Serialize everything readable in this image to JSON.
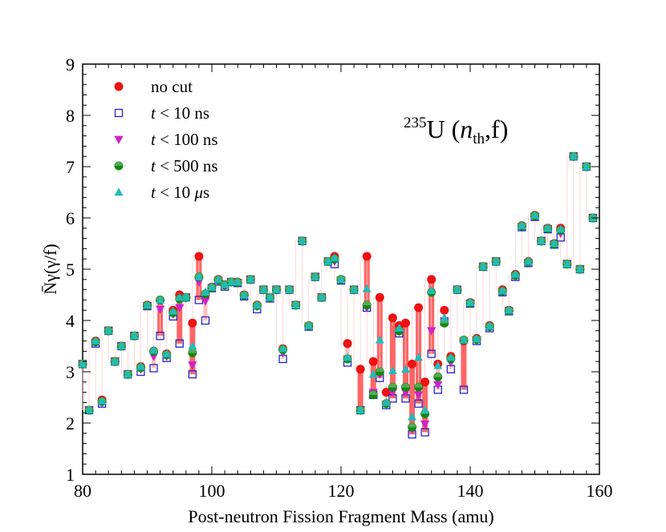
{
  "chart_data": {
    "type": "scatter",
    "xlabel": "Post-neutron Fission Fragment Mass (amu)",
    "ylabel": "N̄γ(γ/f)",
    "xlim": [
      80,
      160
    ],
    "ylim": [
      1,
      9
    ],
    "xticks": [
      80,
      100,
      120,
      140,
      160
    ],
    "yticks": [
      1,
      2,
      3,
      4,
      5,
      6,
      7,
      8,
      9
    ],
    "annotation": "235U (nth,f)",
    "legend": [
      {
        "key": "nocut",
        "label": "no cut",
        "color": "#ee1111",
        "marker": "circle-filled"
      },
      {
        "key": "t10ns",
        "label": "t < 10 ns",
        "color": "#2222cc",
        "marker": "square-open"
      },
      {
        "key": "t100ns",
        "label": "t < 100 ns",
        "color": "#cc22cc",
        "marker": "triangle-down"
      },
      {
        "key": "t500ns",
        "label": "t < 500 ns",
        "color": "#118811",
        "marker": "half-circle"
      },
      {
        "key": "t10us",
        "label": "t < 10 μs",
        "color": "#22bbbb",
        "marker": "triangle-up"
      }
    ],
    "x": [
      80,
      81,
      82,
      83,
      84,
      85,
      86,
      87,
      88,
      89,
      90,
      91,
      92,
      93,
      94,
      95,
      96,
      97,
      98,
      99,
      100,
      101,
      102,
      103,
      104,
      105,
      106,
      107,
      108,
      109,
      110,
      111,
      112,
      113,
      114,
      115,
      116,
      117,
      118,
      119,
      120,
      121,
      122,
      123,
      124,
      125,
      126,
      127,
      128,
      129,
      130,
      131,
      132,
      133,
      134,
      135,
      136,
      137,
      138,
      139,
      140,
      141,
      142,
      143,
      144,
      145,
      146,
      147,
      148,
      149,
      150,
      151,
      152,
      153,
      154,
      155,
      156,
      157,
      158,
      159
    ],
    "series": [
      {
        "name": "no cut",
        "key": "nocut",
        "values": [
          3.15,
          2.25,
          3.6,
          2.45,
          3.8,
          3.2,
          3.5,
          2.95,
          3.7,
          3.1,
          4.3,
          3.4,
          4.4,
          3.35,
          4.2,
          4.5,
          4.45,
          3.95,
          5.25,
          4.5,
          4.65,
          4.8,
          4.7,
          4.75,
          4.75,
          4.5,
          4.8,
          4.3,
          4.6,
          4.45,
          4.6,
          3.45,
          4.6,
          4.3,
          5.55,
          3.9,
          4.85,
          4.45,
          5.15,
          5.25,
          4.8,
          3.55,
          4.6,
          3.05,
          5.25,
          3.2,
          4.45,
          2.6,
          4.05,
          3.9,
          3.95,
          3.15,
          4.25,
          2.8,
          4.8,
          3.15,
          4.2,
          3.3,
          4.6,
          3.6,
          4.35,
          3.65,
          5.05,
          3.9,
          5.15,
          4.6,
          4.2,
          4.9,
          5.85,
          5.15,
          6.05,
          5.55,
          5.8,
          5.5,
          5.8,
          5.1,
          7.2,
          5.0,
          7.0,
          6.0
        ]
      },
      {
        "name": "t < 10 ns",
        "key": "t10ns",
        "values": [
          3.15,
          2.25,
          3.55,
          2.38,
          3.8,
          3.2,
          3.5,
          2.95,
          3.7,
          3.0,
          4.28,
          3.07,
          3.7,
          3.27,
          4.08,
          3.55,
          4.45,
          2.95,
          4.4,
          4.0,
          4.63,
          4.76,
          4.66,
          4.75,
          4.73,
          4.47,
          4.8,
          4.22,
          4.6,
          4.43,
          4.6,
          3.25,
          4.6,
          4.3,
          5.55,
          3.88,
          4.85,
          4.45,
          5.15,
          5.1,
          4.78,
          3.18,
          4.6,
          2.25,
          4.25,
          2.55,
          2.88,
          2.35,
          2.48,
          3.75,
          2.48,
          1.78,
          2.38,
          1.82,
          3.35,
          2.65,
          3.98,
          3.05,
          4.6,
          2.65,
          4.33,
          3.6,
          5.05,
          3.85,
          5.15,
          4.55,
          4.18,
          4.85,
          5.82,
          5.12,
          6.02,
          5.55,
          5.78,
          5.48,
          5.62,
          5.1,
          7.2,
          5.0,
          7.0,
          6.0
        ]
      },
      {
        "name": "t < 100 ns",
        "key": "t100ns",
        "values": [
          3.15,
          2.25,
          3.57,
          2.4,
          3.8,
          3.2,
          3.5,
          2.95,
          3.7,
          3.05,
          4.28,
          3.3,
          4.22,
          3.3,
          4.12,
          4.25,
          4.45,
          3.13,
          4.75,
          4.38,
          4.63,
          4.78,
          4.68,
          4.75,
          4.74,
          4.48,
          4.8,
          4.27,
          4.6,
          4.44,
          4.6,
          3.37,
          4.6,
          4.3,
          5.55,
          3.89,
          4.85,
          4.45,
          5.15,
          5.15,
          4.79,
          3.25,
          4.6,
          2.25,
          4.25,
          2.6,
          2.95,
          2.37,
          2.6,
          3.78,
          2.6,
          1.88,
          2.55,
          1.98,
          3.8,
          2.75,
          3.98,
          3.18,
          4.6,
          3.6,
          4.33,
          3.62,
          5.05,
          3.87,
          5.15,
          4.55,
          4.18,
          4.85,
          5.83,
          5.13,
          6.03,
          5.55,
          5.78,
          5.48,
          5.7,
          5.1,
          7.2,
          5.0,
          7.0,
          6.0
        ]
      },
      {
        "name": "t < 500 ns",
        "key": "t500ns",
        "values": [
          3.15,
          2.25,
          3.58,
          2.42,
          3.8,
          3.2,
          3.5,
          2.95,
          3.7,
          3.08,
          4.29,
          3.4,
          4.4,
          3.33,
          4.15,
          4.42,
          4.45,
          3.37,
          4.85,
          4.52,
          4.64,
          4.79,
          4.69,
          4.75,
          4.74,
          4.49,
          4.8,
          4.29,
          4.6,
          4.45,
          4.6,
          3.43,
          4.6,
          4.3,
          5.55,
          3.9,
          4.85,
          4.45,
          5.15,
          5.2,
          4.8,
          3.25,
          4.6,
          2.25,
          4.3,
          2.55,
          3.0,
          2.38,
          2.7,
          3.8,
          2.7,
          1.92,
          2.7,
          2.18,
          4.55,
          2.9,
          3.95,
          3.25,
          4.6,
          3.62,
          4.34,
          3.63,
          5.05,
          3.88,
          5.15,
          4.57,
          4.19,
          4.88,
          5.84,
          5.14,
          6.04,
          5.55,
          5.79,
          5.49,
          5.76,
          5.1,
          7.2,
          5.0,
          7.0,
          6.0
        ]
      },
      {
        "name": "t < 10 μs",
        "key": "t10us",
        "values": [
          3.15,
          2.25,
          3.6,
          2.43,
          3.8,
          3.2,
          3.5,
          2.95,
          3.7,
          3.1,
          4.3,
          3.42,
          4.4,
          3.35,
          4.18,
          4.45,
          4.45,
          3.5,
          4.85,
          4.55,
          4.65,
          4.8,
          4.7,
          4.75,
          4.75,
          4.5,
          4.8,
          4.3,
          4.6,
          4.45,
          4.6,
          3.45,
          4.6,
          4.3,
          5.55,
          3.9,
          4.85,
          4.45,
          5.15,
          5.22,
          4.8,
          3.28,
          4.6,
          2.25,
          4.62,
          2.95,
          3.62,
          2.4,
          3.02,
          3.85,
          3.05,
          2.12,
          3.28,
          2.25,
          4.58,
          3.12,
          4.05,
          3.28,
          4.6,
          3.62,
          4.35,
          3.64,
          5.05,
          3.89,
          5.15,
          4.58,
          4.2,
          4.9,
          5.85,
          5.15,
          6.05,
          5.55,
          5.8,
          5.5,
          5.78,
          5.1,
          7.2,
          5.0,
          7.0,
          6.0
        ]
      }
    ]
  }
}
